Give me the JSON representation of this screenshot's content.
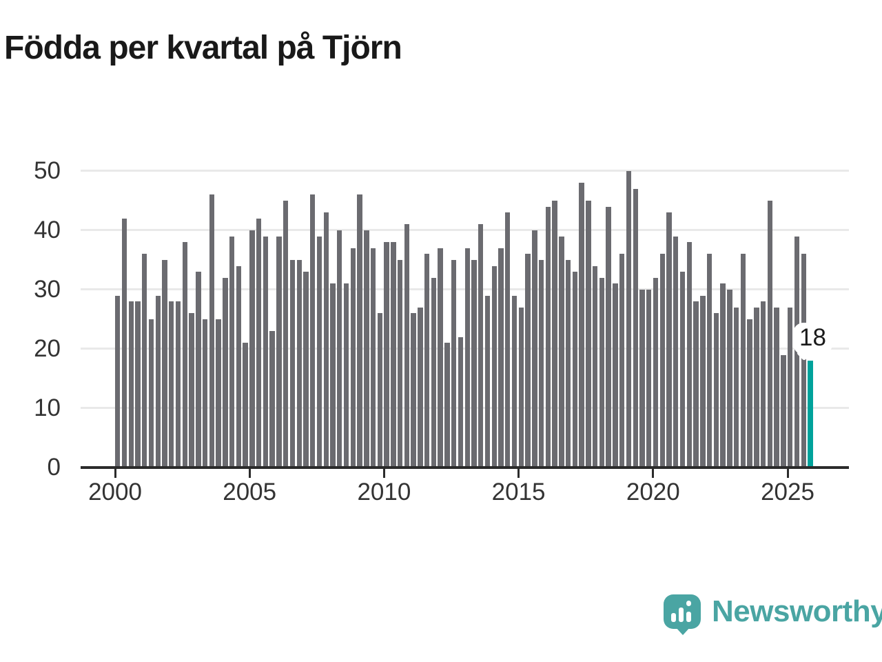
{
  "title": "Födda per kvartal på Tjörn",
  "branding": {
    "logo_text": "Newsworthy",
    "logo_icon": "newsworthy-speech-bubble-bar-chart-icon",
    "logo_color": "#4aa5a3"
  },
  "colors": {
    "bar": "#6b6b70",
    "highlight": "#00a29b",
    "grid": "#e9e9e9",
    "axis": "#2b2b2b",
    "text": "#333333"
  },
  "chart_data": {
    "type": "bar",
    "title": "Födda per kvartal på Tjörn",
    "frequency": "quarterly",
    "x_start": "2000-Q1",
    "x_end": "2025-Q4",
    "values": [
      29,
      42,
      28,
      28,
      36,
      25,
      29,
      35,
      28,
      28,
      38,
      26,
      33,
      25,
      46,
      25,
      32,
      39,
      34,
      21,
      40,
      42,
      39,
      23,
      39,
      45,
      35,
      35,
      33,
      46,
      39,
      43,
      31,
      40,
      31,
      37,
      46,
      40,
      37,
      26,
      38,
      38,
      35,
      41,
      26,
      27,
      36,
      32,
      37,
      21,
      35,
      22,
      37,
      35,
      41,
      29,
      34,
      37,
      43,
      29,
      27,
      36,
      40,
      35,
      44,
      45,
      39,
      35,
      33,
      48,
      45,
      34,
      32,
      44,
      31,
      36,
      50,
      47,
      30,
      30,
      32,
      36,
      43,
      39,
      33,
      38,
      28,
      29,
      36,
      26,
      31,
      30,
      27,
      36,
      25,
      27,
      28,
      45,
      27,
      19,
      27,
      39,
      36,
      18
    ],
    "x_tick_labels": [
      "2000",
      "2005",
      "2010",
      "2015",
      "2020",
      "2025"
    ],
    "x_tick_quarter_indexes": [
      0,
      20,
      40,
      60,
      80,
      100
    ],
    "y_tick_labels": [
      "0",
      "10",
      "20",
      "30",
      "40",
      "50"
    ],
    "y_ticks": [
      0,
      10,
      20,
      30,
      40,
      50
    ],
    "ylim": [
      0,
      50
    ],
    "grid": "horizontal",
    "legend": "none",
    "highlight": {
      "quarter": "2025-Q4",
      "index": 103,
      "value": 18,
      "label": "18"
    }
  }
}
